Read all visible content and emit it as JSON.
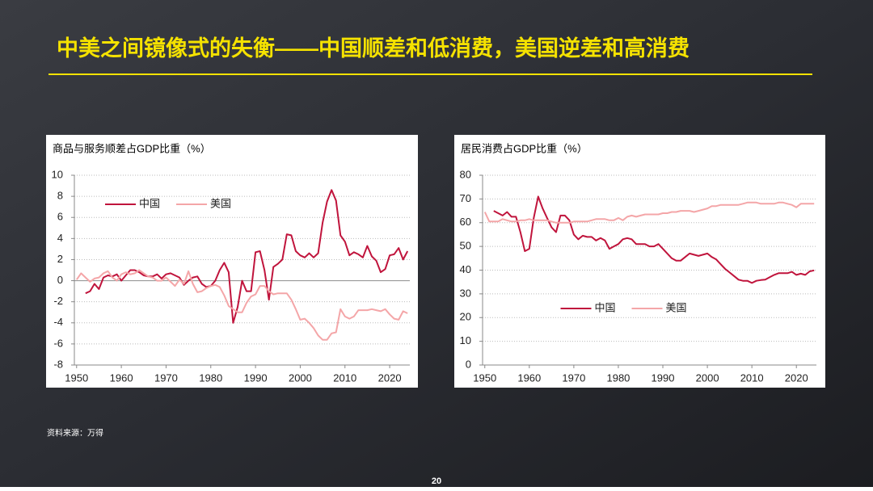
{
  "slide": {
    "title": "中美之间镜像式的失衡——中国顺差和低消费，美国逆差和高消费",
    "source": "资料来源：万得",
    "page": "20"
  },
  "chart_data": [
    {
      "type": "line",
      "title": "商品与服务顺差占GDP比重（%）",
      "x": [
        1950,
        1951,
        1952,
        1953,
        1954,
        1955,
        1956,
        1957,
        1958,
        1959,
        1960,
        1961,
        1962,
        1963,
        1964,
        1965,
        1966,
        1967,
        1968,
        1969,
        1970,
        1971,
        1972,
        1973,
        1974,
        1975,
        1976,
        1977,
        1978,
        1979,
        1980,
        1981,
        1982,
        1983,
        1984,
        1985,
        1986,
        1987,
        1988,
        1989,
        1990,
        1991,
        1992,
        1993,
        1994,
        1995,
        1996,
        1997,
        1998,
        1999,
        2000,
        2001,
        2002,
        2003,
        2004,
        2005,
        2006,
        2007,
        2008,
        2009,
        2010,
        2011,
        2012,
        2013,
        2014,
        2015,
        2016,
        2017,
        2018,
        2019,
        2020,
        2021,
        2022,
        2023,
        2024
      ],
      "series": [
        {
          "name": "中国",
          "color": "#c0143c",
          "values": [
            null,
            null,
            -1.2,
            -1.0,
            -0.3,
            -0.8,
            0.3,
            0.5,
            0.4,
            0.6,
            0.0,
            0.5,
            1.0,
            1.0,
            0.8,
            0.5,
            0.4,
            0.4,
            0.6,
            0.2,
            0.6,
            0.7,
            0.5,
            0.3,
            -0.4,
            0.0,
            0.3,
            0.4,
            -0.3,
            -0.6,
            -0.5,
            0.0,
            1.0,
            1.7,
            0.8,
            -4.0,
            -2.5,
            0.0,
            -1.0,
            -1.0,
            2.7,
            2.8,
            1.0,
            -1.8,
            1.3,
            1.6,
            2.0,
            4.4,
            4.3,
            2.8,
            2.4,
            2.2,
            2.6,
            2.2,
            2.6,
            5.5,
            7.5,
            8.6,
            7.6,
            4.3,
            3.7,
            2.4,
            2.7,
            2.5,
            2.2,
            3.3,
            2.3,
            1.9,
            0.8,
            1.1,
            2.4,
            2.5,
            3.1,
            2.0,
            2.8
          ]
        },
        {
          "name": "美国",
          "color": "#f4a6a8",
          "values": [
            0.1,
            0.7,
            0.3,
            -0.1,
            0.2,
            0.3,
            0.7,
            0.9,
            0.3,
            0.0,
            0.6,
            0.8,
            0.6,
            0.7,
            1.0,
            0.7,
            0.4,
            0.3,
            0.0,
            0.0,
            0.3,
            -0.1,
            -0.5,
            0.1,
            -0.3,
            0.9,
            -0.3,
            -1.1,
            -1.0,
            -0.7,
            -0.5,
            -0.4,
            -0.6,
            -1.4,
            -2.4,
            -2.7,
            -3.0,
            -3.0,
            -2.1,
            -1.5,
            -1.3,
            -0.5,
            -0.5,
            -1.0,
            -1.3,
            -1.2,
            -1.2,
            -1.2,
            -1.8,
            -2.7,
            -3.7,
            -3.6,
            -4.0,
            -4.5,
            -5.2,
            -5.6,
            -5.6,
            -5.0,
            -4.9,
            -2.7,
            -3.4,
            -3.6,
            -3.4,
            -2.8,
            -2.8,
            -2.8,
            -2.7,
            -2.8,
            -2.9,
            -2.7,
            -3.2,
            -3.6,
            -3.7,
            -2.9,
            -3.1
          ]
        }
      ],
      "xlim": [
        1949.5,
        2024.5
      ],
      "xticks": [
        1950,
        1960,
        1970,
        1980,
        1990,
        2000,
        2010,
        2020
      ],
      "ylim": [
        -8,
        10
      ],
      "yticks": [
        -8,
        -6,
        -4,
        -2,
        0,
        2,
        4,
        6,
        8,
        10
      ],
      "grid": true,
      "legend": "upper left"
    },
    {
      "type": "line",
      "title": "居民消费占GDP比重（%）",
      "x": [
        1950,
        1951,
        1952,
        1953,
        1954,
        1955,
        1956,
        1957,
        1958,
        1959,
        1960,
        1961,
        1962,
        1963,
        1964,
        1965,
        1966,
        1967,
        1968,
        1969,
        1970,
        1971,
        1972,
        1973,
        1974,
        1975,
        1976,
        1977,
        1978,
        1979,
        1980,
        1981,
        1982,
        1983,
        1984,
        1985,
        1986,
        1987,
        1988,
        1989,
        1990,
        1991,
        1992,
        1993,
        1994,
        1995,
        1996,
        1997,
        1998,
        1999,
        2000,
        2001,
        2002,
        2003,
        2004,
        2005,
        2006,
        2007,
        2008,
        2009,
        2010,
        2011,
        2012,
        2013,
        2014,
        2015,
        2016,
        2017,
        2018,
        2019,
        2020,
        2021,
        2022,
        2023,
        2024
      ],
      "series": [
        {
          "name": "中国",
          "color": "#c0143c",
          "values": [
            null,
            null,
            65,
            64,
            63,
            64.5,
            62.5,
            62.5,
            56,
            48,
            49,
            62,
            71,
            66,
            62,
            58,
            56,
            63,
            63,
            61,
            55,
            53,
            54.5,
            54,
            54,
            52.5,
            53.5,
            52.5,
            49,
            50,
            51,
            53,
            53.5,
            53,
            51,
            51,
            51,
            50,
            50,
            51,
            49,
            47,
            45,
            44,
            44,
            45.5,
            47,
            46.5,
            46,
            46.5,
            47,
            45.5,
            44.5,
            42.5,
            40.5,
            39,
            37.5,
            36,
            35.5,
            35.5,
            34.6,
            35.5,
            35.8,
            36,
            37,
            38,
            38.7,
            38.7,
            38.7,
            39.3,
            38,
            38.5,
            38,
            39.5,
            39.9
          ]
        },
        {
          "name": "美国",
          "color": "#f4a6a8",
          "values": [
            64.5,
            60.5,
            60.5,
            60.5,
            61.5,
            61,
            60.5,
            60.5,
            61,
            61,
            61.5,
            61,
            61,
            61,
            61,
            60.5,
            60,
            60,
            60,
            60,
            60.5,
            60.5,
            60.5,
            60.5,
            61,
            61.5,
            61.5,
            61.5,
            61,
            61,
            62,
            61,
            62.5,
            63,
            62.5,
            63,
            63.5,
            63.5,
            63.5,
            63.5,
            64,
            64,
            64.5,
            64.5,
            65,
            65,
            65,
            64.5,
            65,
            65.5,
            66,
            67,
            67,
            67.5,
            67.5,
            67.5,
            67.5,
            67.5,
            68,
            68.5,
            68.5,
            68.5,
            68,
            68,
            68,
            68,
            68.5,
            68.5,
            68,
            67.5,
            66.5,
            68,
            68,
            68,
            68
          ]
        }
      ],
      "xlim": [
        1949.5,
        2024.5
      ],
      "xticks": [
        1950,
        1960,
        1970,
        1980,
        1990,
        2000,
        2010,
        2020
      ],
      "ylim": [
        0,
        80
      ],
      "yticks": [
        0,
        10,
        20,
        30,
        40,
        50,
        60,
        70,
        80
      ],
      "grid": true,
      "legend": "lower center"
    }
  ]
}
